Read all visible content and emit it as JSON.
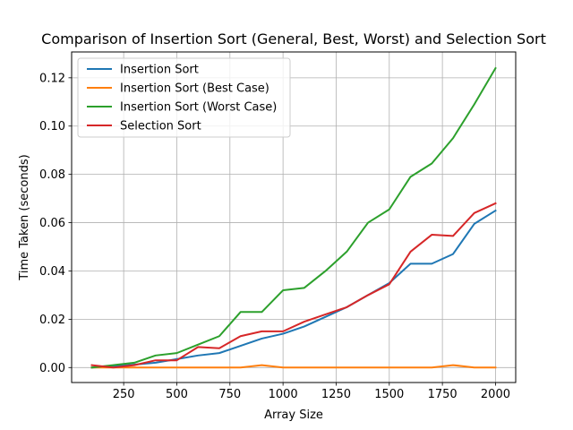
{
  "chart_data": {
    "type": "line",
    "title": "Comparison of Insertion Sort (General, Best, Worst) and Selection Sort",
    "xlabel": "Array Size",
    "ylabel": "Time Taken (seconds)",
    "xlim": [
      5,
      2095
    ],
    "ylim": [
      -0.0062,
      0.1307
    ],
    "xticks": [
      250,
      500,
      750,
      1000,
      1250,
      1500,
      1750,
      2000
    ],
    "xtick_labels": [
      "250",
      "500",
      "750",
      "1000",
      "1250",
      "1500",
      "1750",
      "2000"
    ],
    "yticks": [
      0.0,
      0.02,
      0.04,
      0.06,
      0.08,
      0.1,
      0.12
    ],
    "ytick_labels": [
      "0.00",
      "0.02",
      "0.04",
      "0.06",
      "0.08",
      "0.10",
      "0.12"
    ],
    "grid": true,
    "legend_position": "top-left",
    "x": [
      100,
      200,
      300,
      400,
      500,
      600,
      700,
      800,
      900,
      1000,
      1100,
      1200,
      1300,
      1400,
      1500,
      1600,
      1700,
      1800,
      1900,
      2000
    ],
    "series": [
      {
        "name": "Insertion Sort",
        "color": "#1f77b4",
        "values": [
          0.0,
          0.0005,
          0.0012,
          0.002,
          0.0035,
          0.005,
          0.006,
          0.009,
          0.012,
          0.014,
          0.017,
          0.021,
          0.025,
          0.03,
          0.035,
          0.043,
          0.043,
          0.047,
          0.0595,
          0.065
        ]
      },
      {
        "name": "Insertion Sort (Best Case)",
        "color": "#ff7f0e",
        "values": [
          0.0,
          0.0,
          0.0,
          0.0,
          0.0,
          0.0,
          0.0,
          0.0,
          0.001,
          0.0,
          0.0,
          0.0,
          0.0,
          0.0,
          0.0,
          0.0,
          0.0,
          0.001,
          0.0,
          0.0
        ]
      },
      {
        "name": "Insertion Sort (Worst Case)",
        "color": "#2ca02c",
        "values": [
          0.0,
          0.001,
          0.002,
          0.005,
          0.006,
          0.0095,
          0.013,
          0.023,
          0.023,
          0.032,
          0.033,
          0.04,
          0.048,
          0.06,
          0.0655,
          0.079,
          0.0845,
          0.095,
          0.109,
          0.124
        ]
      },
      {
        "name": "Selection Sort",
        "color": "#d62728",
        "values": [
          0.001,
          0.0,
          0.001,
          0.003,
          0.003,
          0.0085,
          0.008,
          0.013,
          0.015,
          0.015,
          0.019,
          0.022,
          0.025,
          0.03,
          0.0345,
          0.048,
          0.055,
          0.0545,
          0.064,
          0.068
        ]
      }
    ]
  }
}
